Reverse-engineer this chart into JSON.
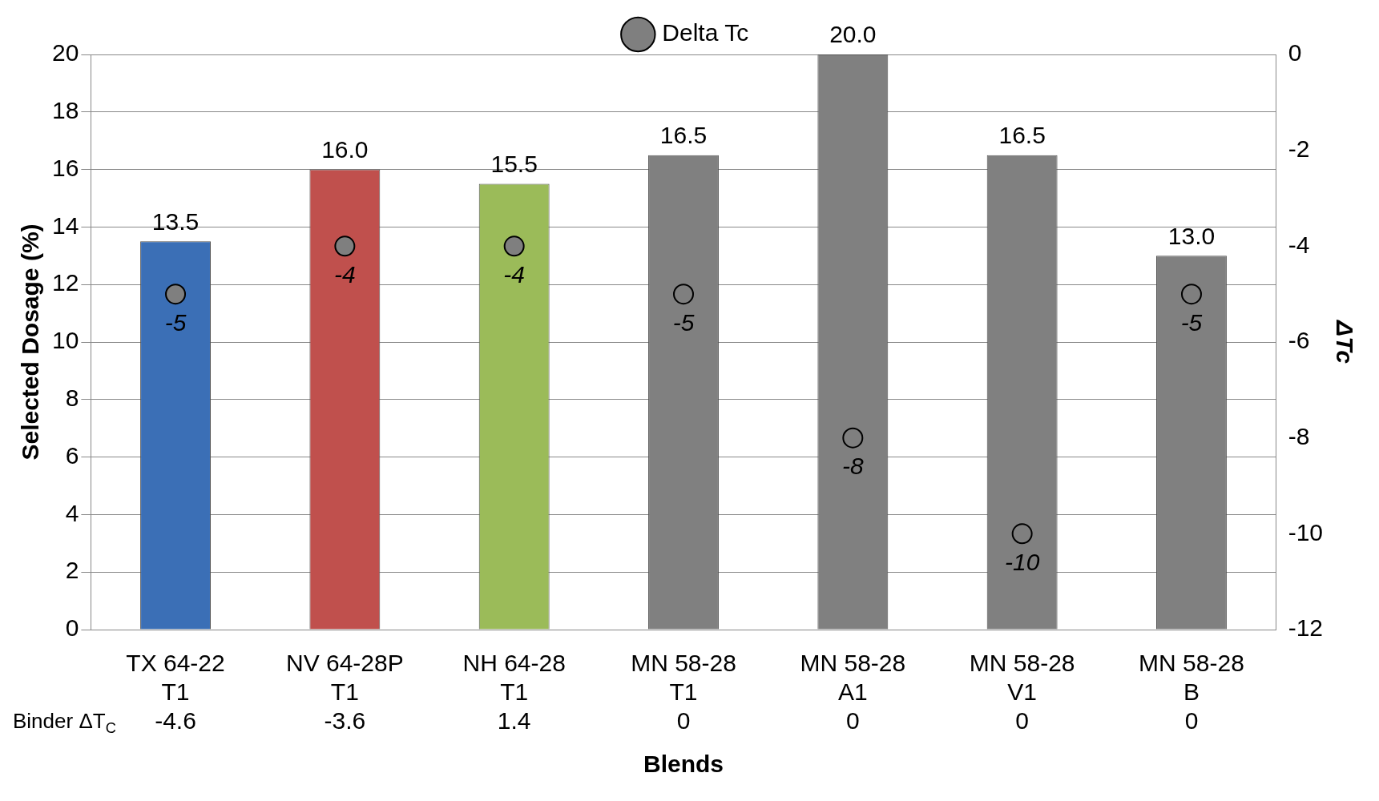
{
  "chart_data": {
    "type": "bar",
    "xlabel": "Blends",
    "ylabel": "Selected Dosage (%)",
    "y2label": "ΔTc",
    "categories": [
      "TX 64-22 T1",
      "NV 64-28P T1",
      "NH 64-28 T1",
      "MN 58-28 T1",
      "MN 58-28 A1",
      "MN 58-28 V1",
      "MN 58-28 B"
    ],
    "series": [
      {
        "colors": [
          "#3b6fb6",
          "#c0504d",
          "#9bbb59",
          "#808080",
          "#808080",
          "#808080",
          "#808080"
        ],
        "values": [
          13.5,
          16.0,
          15.5,
          16.5,
          20.0,
          16.5,
          13.0
        ],
        "value_labels": [
          "13.5",
          "16.0",
          "15.5",
          "16.5",
          "20.0",
          "16.5",
          "13.0"
        ]
      },
      {
        "type": "scatter",
        "name": "Delta Tc",
        "axis": "y2",
        "color": "#7f7f7f",
        "values": [
          -5,
          -4,
          -4,
          -5,
          -8,
          -10,
          -5
        ],
        "value_labels": [
          "-5",
          "-4",
          "-4",
          "-5",
          "-8",
          "-10",
          "-5"
        ]
      }
    ],
    "ylim": [
      0,
      20
    ],
    "yticks": [
      0,
      2,
      4,
      6,
      8,
      10,
      12,
      14,
      16,
      18,
      20
    ],
    "y2lim": [
      -12,
      0
    ],
    "y2ticks": [
      -12,
      -10,
      -8,
      -6,
      -4,
      -2,
      0
    ],
    "annotations": [
      "Binder ΔT$_{C}$",
      "-4.6",
      "-3.6",
      "1.4",
      "0",
      "0",
      "0",
      "0"
    ],
    "grid": "y",
    "legend": "top",
    "marker": "circle"
  }
}
